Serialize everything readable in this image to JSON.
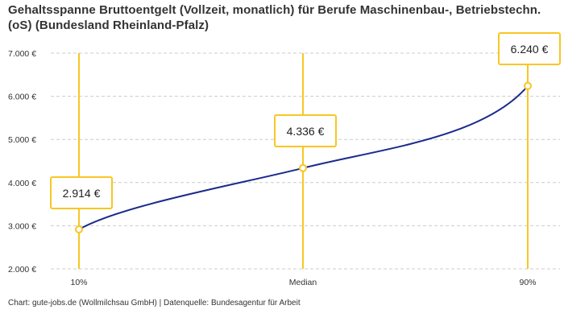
{
  "chart_data": {
    "type": "line",
    "title": "Gehaltsspanne Bruttoentgelt (Vollzeit, monatlich) für Berufe Maschinenbau-, Betriebstechn.(oS) (Bundesland Rheinland-Pfalz)",
    "categories": [
      "10%",
      "Median",
      "90%"
    ],
    "values": [
      2914,
      4336,
      6240
    ],
    "data_labels": [
      "2.914 €",
      "4.336 €",
      "6.240 €"
    ],
    "ylim": [
      2000,
      7000
    ],
    "yticks": [
      2000,
      3000,
      4000,
      5000,
      6000,
      7000
    ],
    "ytick_labels": [
      "2.000 €",
      "3.000 €",
      "4.000 €",
      "5.000 €",
      "6.000 €",
      "7.000 €"
    ],
    "grid": true,
    "colors": {
      "line": "#1a2a8c",
      "marker": "#f9c623",
      "grid": "#cccccc"
    }
  },
  "footer": "Chart: gute-jobs.de (Wollmilchsau GmbH) | Datenquelle: Bundesagentur für Arbeit"
}
